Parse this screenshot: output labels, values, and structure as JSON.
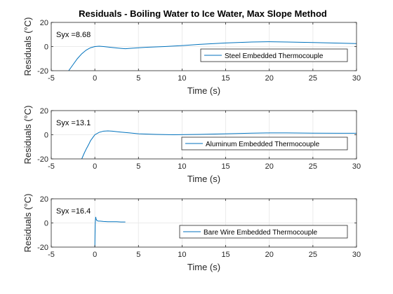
{
  "figure": {
    "title": "Residuals - Boiling Water to Ice Water, Max Slope Method",
    "line_color": "#0072BD",
    "grid": true
  },
  "chart_data": [
    {
      "type": "line",
      "xlabel": "Time (s)",
      "ylabel": "Residuals (°C)",
      "xlim": [
        -5,
        30
      ],
      "ylim": [
        -20,
        20
      ],
      "xticks": [
        -5,
        0,
        5,
        10,
        15,
        20,
        25,
        30
      ],
      "yticks": [
        -20,
        0,
        20
      ],
      "annotation": "Syx =8.68",
      "legend_position": "right",
      "series": [
        {
          "name": "Steel Embedded Thermocouple",
          "x": [
            -3,
            -2.5,
            -2,
            -1.5,
            -1,
            -0.5,
            0,
            0.5,
            1,
            2,
            3,
            3.5,
            4,
            5,
            6,
            8,
            10,
            12,
            15,
            18,
            20,
            22,
            25,
            28,
            30
          ],
          "y": [
            -20,
            -15,
            -10,
            -6,
            -3,
            -1,
            0,
            0.3,
            0,
            -0.8,
            -1.5,
            -1.8,
            -1.5,
            -1,
            -0.6,
            0,
            0.8,
            1.8,
            3,
            3.8,
            4,
            3.8,
            3.3,
            2.8,
            2.5
          ]
        }
      ]
    },
    {
      "type": "line",
      "xlabel": "Time (s)",
      "ylabel": "Residuals (°C)",
      "xlim": [
        -5,
        30
      ],
      "ylim": [
        -20,
        20
      ],
      "xticks": [
        -5,
        0,
        5,
        10,
        15,
        20,
        25,
        30
      ],
      "yticks": [
        -20,
        0,
        20
      ],
      "annotation": "Syx =13.1",
      "legend_position": "right",
      "series": [
        {
          "name": "Aluminum Embedded Thermocouple",
          "x": [
            -1.5,
            -1.2,
            -1,
            -0.7,
            -0.5,
            -0.2,
            0,
            0.5,
            1,
            1.5,
            2,
            3,
            4,
            5,
            7,
            9,
            12,
            15,
            18,
            20,
            22,
            25,
            28,
            30
          ],
          "y": [
            -20,
            -15,
            -12,
            -8,
            -5,
            -2,
            0,
            2,
            3,
            3.2,
            3,
            2.2,
            1.5,
            0.8,
            0.3,
            0,
            0.3,
            0.8,
            1.3,
            1.5,
            1.5,
            1.3,
            1.2,
            1.2
          ]
        }
      ]
    },
    {
      "type": "line",
      "xlabel": "Time (s)",
      "ylabel": "Residuals (°C)",
      "xlim": [
        -5,
        30
      ],
      "ylim": [
        -20,
        20
      ],
      "xticks": [
        -5,
        0,
        5,
        10,
        15,
        20,
        25,
        30
      ],
      "yticks": [
        -20,
        0,
        20
      ],
      "annotation": "Syx =16.4",
      "legend_position": "right",
      "series": [
        {
          "name": "Bare Wire Embedded Thermocouple",
          "x": [
            -0.05,
            0,
            0.02,
            0.05,
            0.1,
            0.15,
            0.25,
            0.4,
            0.6,
            1,
            1.5,
            2,
            2.5,
            3,
            3.5
          ],
          "y": [
            -20,
            -20,
            -10,
            0,
            5,
            3,
            2,
            1.5,
            1.5,
            1.2,
            1.0,
            1.0,
            1.0,
            0.8,
            0.8
          ]
        }
      ]
    }
  ]
}
